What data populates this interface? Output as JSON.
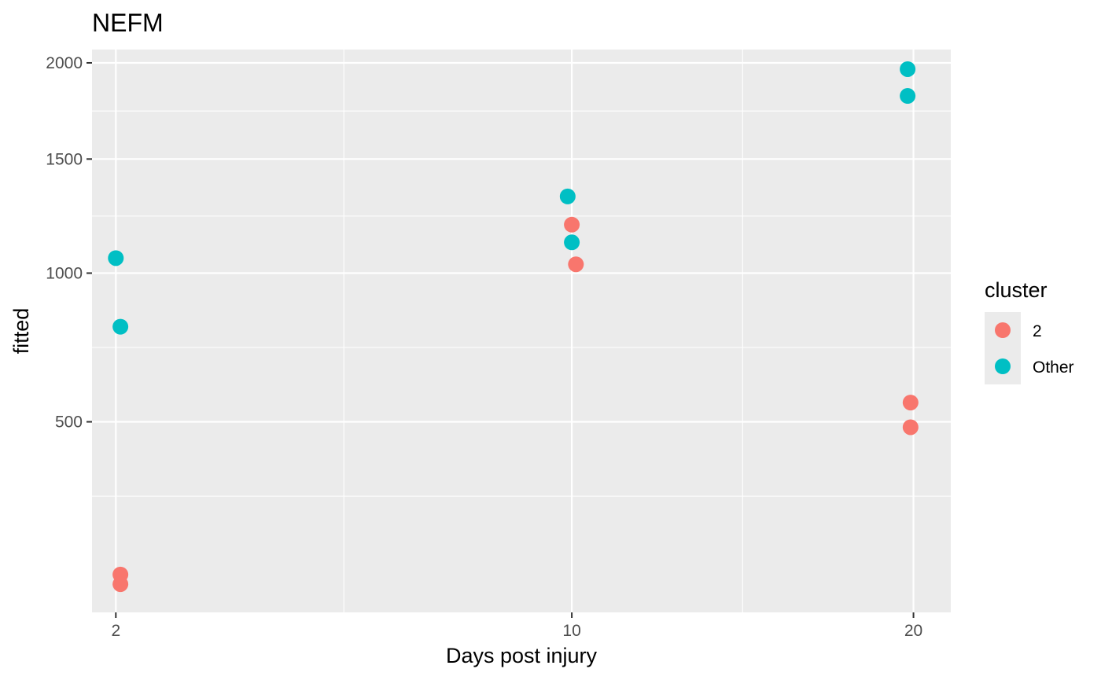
{
  "colors": {
    "panel_bg": "#EBEBEB",
    "grid": "#FFFFFF",
    "cluster_2": "#F8766D",
    "other": "#00BFC4"
  },
  "chart_data": {
    "type": "scatter",
    "title": "NEFM",
    "xlabel": "Days post injury",
    "ylabel": "fitted",
    "x_scale": "sqrt",
    "y_scale": "sqrt",
    "xlim": [
      1.75,
      21.3
    ],
    "ylim": [
      110,
      2075
    ],
    "x_ticks": [
      2,
      10,
      20
    ],
    "x_tick_labels": [
      "2",
      "10",
      "20"
    ],
    "y_ticks": [
      500,
      1000,
      1500,
      2000
    ],
    "y_tick_labels": [
      "500",
      "1000",
      "1500",
      "2000"
    ],
    "grid": true,
    "legend": {
      "title": "cluster",
      "position": "right",
      "entries": [
        "2",
        "Other"
      ]
    },
    "series": [
      {
        "name": "2",
        "color": "#F8766D",
        "points": [
          {
            "x": 2.05,
            "y": 165
          },
          {
            "x": 2.05,
            "y": 150
          },
          {
            "x": 10.0,
            "y": 1200
          },
          {
            "x": 10.1,
            "y": 1035
          },
          {
            "x": 19.9,
            "y": 555
          },
          {
            "x": 19.9,
            "y": 485
          }
        ]
      },
      {
        "name": "Other",
        "color": "#00BFC4",
        "points": [
          {
            "x": 2.0,
            "y": 1060
          },
          {
            "x": 2.05,
            "y": 800
          },
          {
            "x": 9.9,
            "y": 1325
          },
          {
            "x": 10.0,
            "y": 1125
          },
          {
            "x": 19.8,
            "y": 1965
          },
          {
            "x": 19.8,
            "y": 1820
          }
        ]
      }
    ]
  }
}
